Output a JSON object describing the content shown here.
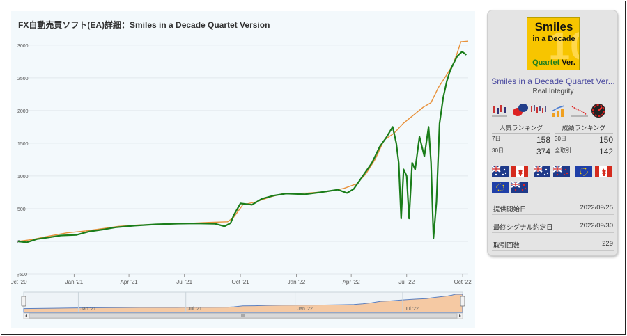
{
  "chart_title": "FX自動売買ソフト(EA)詳細：Smiles in a Decade Quartet Version",
  "chart_data": {
    "type": "line",
    "title": "FX自動売買ソフト(EA)詳細：Smiles in a Decade Quartet Version",
    "xlabel": "",
    "ylabel": "",
    "xlim": [
      "2020-10-01",
      "2022-10-10"
    ],
    "ylim": [
      -500,
      3200
    ],
    "yticks": [
      -500,
      0,
      500,
      1000,
      1500,
      2000,
      2500,
      3000
    ],
    "xticks": [
      "Oct '20",
      "Jan '21",
      "Apr '21",
      "Jul '21",
      "Oct '21",
      "Jan '22",
      "Apr '22",
      "Jul '22",
      "Oct '22"
    ],
    "grid": true,
    "series": [
      {
        "color": "#e8913a",
        "points": [
          [
            "2020-10-01",
            0
          ],
          [
            "2020-10-25",
            30
          ],
          [
            "2020-11-20",
            80
          ],
          [
            "2020-12-20",
            130
          ],
          [
            "2021-01-20",
            160
          ],
          [
            "2021-02-20",
            200
          ],
          [
            "2021-03-15",
            230
          ],
          [
            "2021-04-15",
            250
          ],
          [
            "2021-05-20",
            260
          ],
          [
            "2021-06-25",
            270
          ],
          [
            "2021-08-10",
            290
          ],
          [
            "2021-09-10",
            300
          ],
          [
            "2021-09-20",
            370
          ],
          [
            "2021-10-05",
            560
          ],
          [
            "2021-10-25",
            600
          ],
          [
            "2021-11-20",
            680
          ],
          [
            "2021-12-10",
            730
          ],
          [
            "2022-01-20",
            740
          ],
          [
            "2022-02-20",
            760
          ],
          [
            "2022-03-20",
            810
          ],
          [
            "2022-04-10",
            880
          ],
          [
            "2022-04-25",
            1030
          ],
          [
            "2022-05-10",
            1250
          ],
          [
            "2022-05-25",
            1550
          ],
          [
            "2022-06-10",
            1650
          ],
          [
            "2022-06-25",
            1800
          ],
          [
            "2022-07-15",
            1950
          ],
          [
            "2022-07-28",
            2050
          ],
          [
            "2022-08-10",
            2120
          ],
          [
            "2022-08-22",
            2350
          ],
          [
            "2022-09-05",
            2550
          ],
          [
            "2022-09-15",
            2700
          ],
          [
            "2022-09-22",
            2880
          ],
          [
            "2022-09-28",
            3050
          ],
          [
            "2022-10-10",
            3060
          ]
        ]
      },
      {
        "color": "#1a7d1a",
        "points": [
          [
            "2020-10-01",
            0
          ],
          [
            "2020-10-15",
            -15
          ],
          [
            "2020-11-01",
            35
          ],
          [
            "2020-11-20",
            60
          ],
          [
            "2020-12-10",
            90
          ],
          [
            "2021-01-05",
            100
          ],
          [
            "2021-01-25",
            150
          ],
          [
            "2021-02-20",
            185
          ],
          [
            "2021-03-10",
            215
          ],
          [
            "2021-04-10",
            240
          ],
          [
            "2021-05-15",
            260
          ],
          [
            "2021-06-15",
            270
          ],
          [
            "2021-07-20",
            275
          ],
          [
            "2021-08-20",
            270
          ],
          [
            "2021-09-05",
            230
          ],
          [
            "2021-09-15",
            280
          ],
          [
            "2021-09-20",
            400
          ],
          [
            "2021-10-01",
            580
          ],
          [
            "2021-10-20",
            560
          ],
          [
            "2021-11-05",
            650
          ],
          [
            "2021-11-25",
            700
          ],
          [
            "2021-12-15",
            730
          ],
          [
            "2022-01-15",
            720
          ],
          [
            "2022-02-10",
            750
          ],
          [
            "2022-03-10",
            790
          ],
          [
            "2022-03-25",
            740
          ],
          [
            "2022-04-05",
            800
          ],
          [
            "2022-04-20",
            1000
          ],
          [
            "2022-05-05",
            1200
          ],
          [
            "2022-05-18",
            1450
          ],
          [
            "2022-05-28",
            1580
          ],
          [
            "2022-06-08",
            1750
          ],
          [
            "2022-06-14",
            1500
          ],
          [
            "2022-06-18",
            1200
          ],
          [
            "2022-06-22",
            350
          ],
          [
            "2022-06-26",
            1100
          ],
          [
            "2022-07-01",
            1000
          ],
          [
            "2022-07-05",
            350
          ],
          [
            "2022-07-10",
            1200
          ],
          [
            "2022-07-15",
            1100
          ],
          [
            "2022-07-22",
            1600
          ],
          [
            "2022-07-30",
            1300
          ],
          [
            "2022-08-06",
            1750
          ],
          [
            "2022-08-10",
            1200
          ],
          [
            "2022-08-14",
            50
          ],
          [
            "2022-08-19",
            600
          ],
          [
            "2022-08-24",
            1800
          ],
          [
            "2022-08-30",
            2200
          ],
          [
            "2022-09-05",
            2450
          ],
          [
            "2022-09-10",
            2600
          ],
          [
            "2022-09-15",
            2700
          ],
          [
            "2022-09-22",
            2830
          ],
          [
            "2022-09-30",
            2900
          ],
          [
            "2022-10-07",
            2850
          ]
        ]
      }
    ],
    "navigator": {
      "xticks": [
        "Jan '21",
        "Jul '21",
        "Jan '22",
        "Jul '22"
      ],
      "fill": "#f5c9a3",
      "stroke": "#5b7fbf"
    }
  },
  "product": {
    "logo_text": [
      "Smiles",
      "in a Decade",
      "Quartet",
      "Ver."
    ],
    "logo_big_glyph": "10",
    "name": "Smiles in a Decade Quartet Ver...",
    "author": "Real Integrity",
    "icon_names": [
      "candlestick-chart-icon",
      "chat-bubble-icon",
      "price-chart-icon",
      "growth-chart-icon",
      "drawdown-chart-icon",
      "speed-gauge-icon"
    ]
  },
  "popularity": {
    "title": "人気ランキング",
    "rows": [
      {
        "label": "7日",
        "value": "158"
      },
      {
        "label": "30日",
        "value": "374"
      }
    ]
  },
  "performance": {
    "title": "成績ランキング",
    "rows": [
      {
        "label": "30日",
        "value": "150"
      },
      {
        "label": "全取引",
        "value": "142"
      }
    ]
  },
  "currency_flags": [
    "AUD",
    "CAD",
    "AUD",
    "NZD",
    "EUR",
    "CAD",
    "EUR",
    "NZD"
  ],
  "info": [
    {
      "label": "提供開始日",
      "value": "2022/09/25"
    },
    {
      "label": "最終シグナル約定日",
      "value": "2022/09/30"
    },
    {
      "label": "取引回数",
      "value": "229"
    }
  ]
}
